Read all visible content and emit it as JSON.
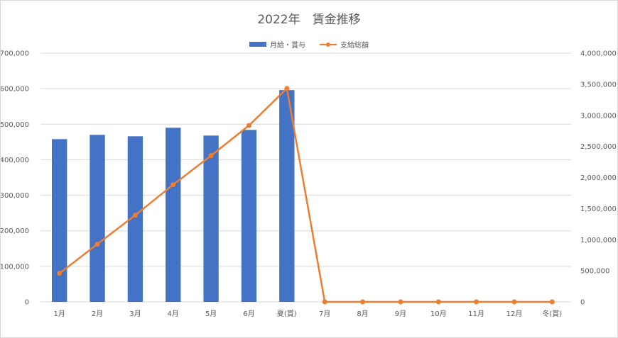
{
  "chart_data": {
    "type": "bar+line",
    "title": "2022年　賃金推移",
    "categories": [
      "1月",
      "2月",
      "3月",
      "4月",
      "5月",
      "6月",
      "夏(賞)",
      "7月",
      "8月",
      "9月",
      "10月",
      "11月",
      "12月",
      "冬(賞)"
    ],
    "series": [
      {
        "name": "月給・賞与",
        "type": "bar",
        "axis": "left",
        "color": "#4472c4",
        "values": [
          458000,
          470000,
          466000,
          490000,
          468000,
          484000,
          596000,
          0,
          0,
          0,
          0,
          0,
          0,
          0
        ]
      },
      {
        "name": "支給総額",
        "type": "line",
        "axis": "right",
        "color": "#ed7d31",
        "values": [
          458000,
          928000,
          1394000,
          1884000,
          2352000,
          2836000,
          3432000,
          0,
          0,
          0,
          0,
          0,
          0,
          0
        ]
      }
    ],
    "y_left": {
      "range": [
        0,
        700000
      ],
      "ticks": [
        0,
        100000,
        200000,
        300000,
        400000,
        500000,
        600000,
        700000
      ],
      "tick_labels": [
        "0",
        "100,000",
        "200,000",
        "300,000",
        "400,000",
        "500,000",
        "600,000",
        "700,000"
      ]
    },
    "y_right": {
      "range": [
        0,
        4000000
      ],
      "ticks": [
        0,
        500000,
        1000000,
        1500000,
        2000000,
        2500000,
        3000000,
        3500000,
        4000000
      ],
      "tick_labels": [
        "0",
        "500,000",
        "1,000,000",
        "1,500,000",
        "2,000,000",
        "2,500,000",
        "3,000,000",
        "3,500,000",
        "4,000,000"
      ]
    },
    "grid": true,
    "legend_position": "top"
  }
}
